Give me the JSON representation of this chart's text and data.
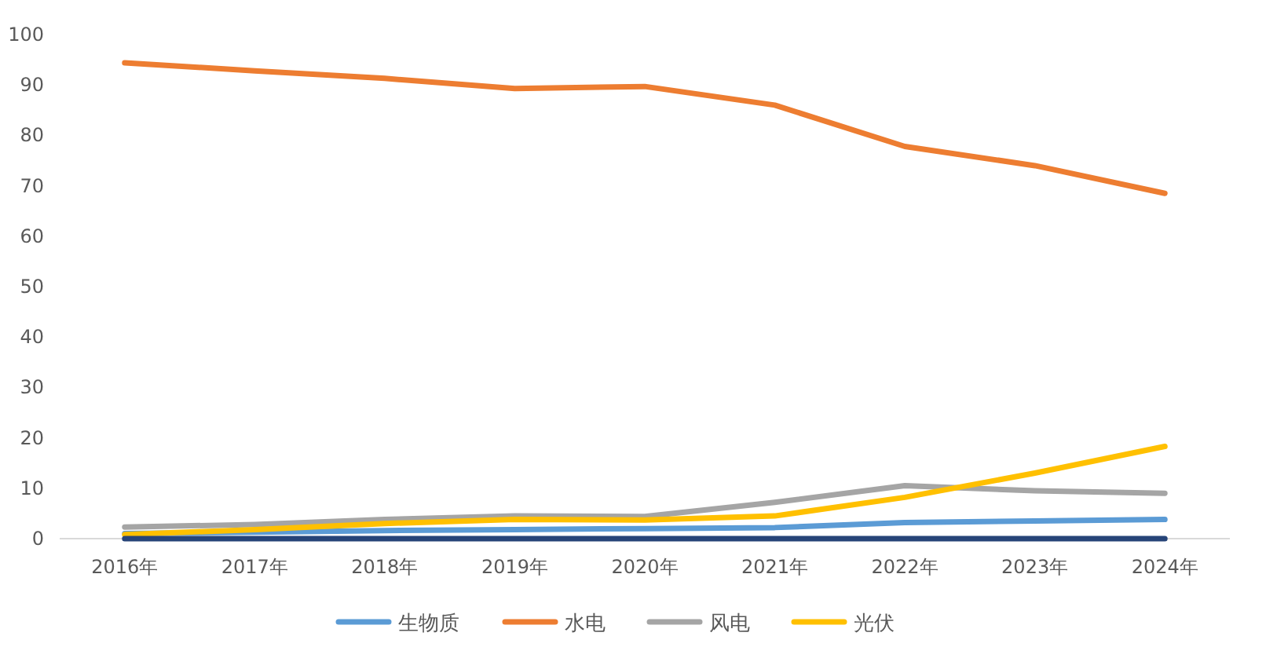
{
  "chart_data": {
    "type": "line",
    "categories": [
      "2016年",
      "2017年",
      "2018年",
      "2019年",
      "2020年",
      "2021年",
      "2022年",
      "2023年",
      "2024年"
    ],
    "series": [
      {
        "name": "生物质",
        "color": "#5b9bd5",
        "values": [
          1.0,
          1.3,
          1.6,
          1.8,
          2.0,
          2.2,
          3.2,
          3.5,
          3.8
        ]
      },
      {
        "name": "水电",
        "color": "#ed7d31",
        "values": [
          94.4,
          92.8,
          91.3,
          89.3,
          89.7,
          86,
          77.8,
          74,
          68.5
        ]
      },
      {
        "name": "风电",
        "color": "#a5a5a5",
        "values": [
          2.3,
          2.8,
          3.8,
          4.5,
          4.4,
          7.2,
          10.5,
          9.5,
          9.0
        ]
      },
      {
        "name": "光伏",
        "color": "#ffc000",
        "values": [
          0.8,
          1.8,
          3.0,
          3.8,
          3.7,
          4.5,
          8.2,
          13,
          18.3
        ]
      },
      {
        "color": "#264478",
        "values": [
          0,
          0,
          0,
          0,
          0,
          0,
          0,
          0,
          0
        ]
      }
    ],
    "ylim": [
      0,
      100
    ],
    "yticks": [
      0,
      10,
      20,
      30,
      40,
      50,
      60,
      70,
      80,
      90,
      100
    ],
    "grid": false,
    "legend": "bottom",
    "marker": "none",
    "line_style": "solid"
  }
}
